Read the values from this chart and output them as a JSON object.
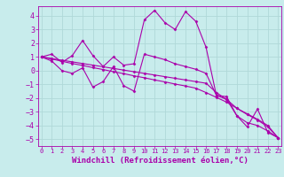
{
  "background_color": "#c8ecec",
  "grid_color": "#b0d8d8",
  "line_color": "#aa00aa",
  "marker_color": "#aa00aa",
  "xlabel": "Windchill (Refroidissement éolien,°C)",
  "xlabel_fontsize": 6.5,
  "ytick_fontsize": 6.0,
  "xtick_fontsize": 5.0,
  "yticks": [
    -5,
    -4,
    -3,
    -2,
    -1,
    0,
    1,
    2,
    3,
    4
  ],
  "xticks": [
    0,
    1,
    2,
    3,
    4,
    5,
    6,
    7,
    8,
    9,
    10,
    11,
    12,
    13,
    14,
    15,
    16,
    17,
    18,
    19,
    20,
    21,
    22,
    23
  ],
  "xlim": [
    -0.3,
    23.3
  ],
  "ylim": [
    -5.5,
    4.7
  ],
  "series": [
    [
      1.0,
      1.2,
      0.6,
      1.1,
      2.2,
      1.1,
      0.3,
      1.0,
      0.4,
      0.5,
      3.7,
      4.4,
      3.5,
      3.0,
      4.3,
      3.6,
      1.7,
      -1.8,
      -1.9,
      -3.3,
      -4.1,
      -2.8,
      -4.5,
      -4.9
    ],
    [
      1.0,
      0.7,
      0.0,
      -0.2,
      0.2,
      -1.2,
      -0.8,
      0.3,
      -1.1,
      -1.5,
      1.2,
      1.0,
      0.8,
      0.5,
      0.3,
      0.1,
      -0.2,
      -1.8,
      -2.1,
      -3.3,
      -3.8,
      -4.0,
      -4.4,
      -4.9
    ],
    [
      1.0,
      0.85,
      0.68,
      0.52,
      0.38,
      0.22,
      0.08,
      -0.08,
      -0.22,
      -0.38,
      -0.52,
      -0.68,
      -0.82,
      -0.98,
      -1.12,
      -1.28,
      -1.6,
      -1.95,
      -2.3,
      -2.75,
      -3.15,
      -3.55,
      -4.0,
      -4.9
    ],
    [
      1.0,
      0.88,
      0.76,
      0.64,
      0.52,
      0.4,
      0.28,
      0.16,
      0.04,
      -0.08,
      -0.2,
      -0.32,
      -0.44,
      -0.56,
      -0.68,
      -0.8,
      -0.92,
      -1.6,
      -2.1,
      -2.75,
      -3.2,
      -3.6,
      -4.1,
      -4.9
    ]
  ]
}
